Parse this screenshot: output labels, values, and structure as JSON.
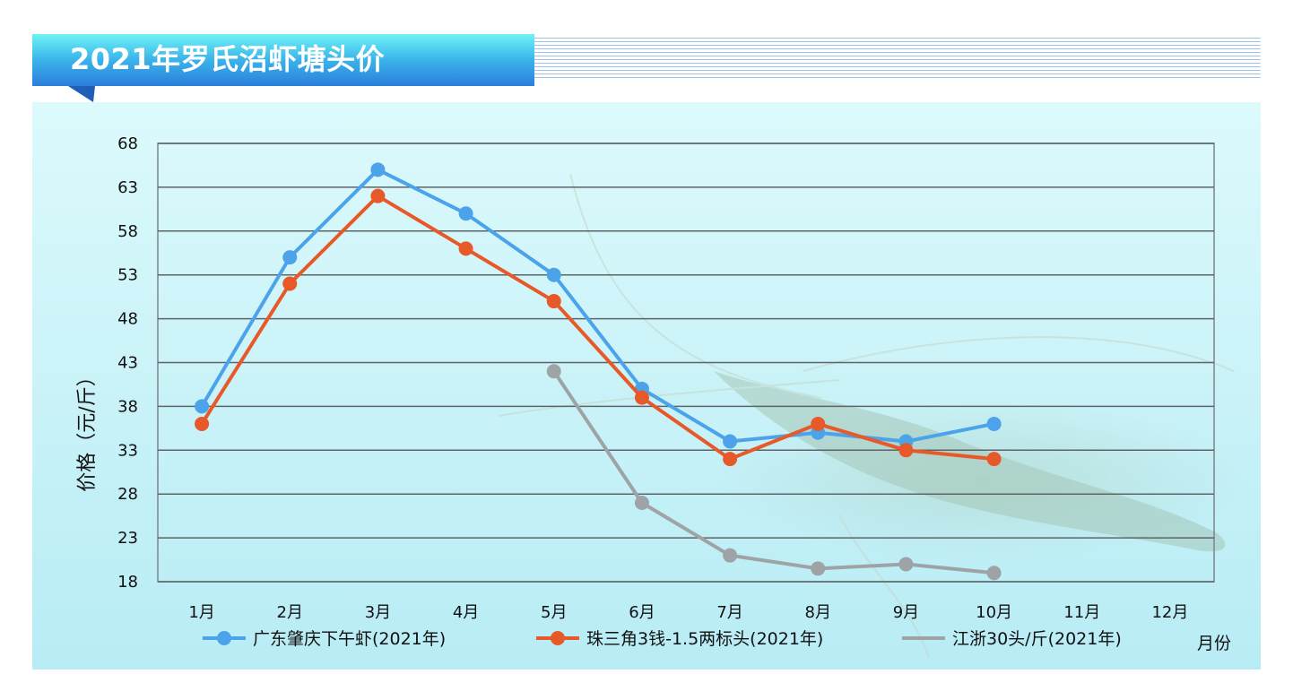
{
  "header": {
    "title": "2021年罗氏沼虾塘头价"
  },
  "chart_data": {
    "type": "line",
    "xlabel": "月份",
    "ylabel": "价格（元/斤）",
    "categories": [
      "1月",
      "2月",
      "3月",
      "4月",
      "5月",
      "6月",
      "7月",
      "8月",
      "9月",
      "10月",
      "11月",
      "12月"
    ],
    "ylim": [
      18,
      68
    ],
    "yticks": [
      18,
      23,
      28,
      33,
      38,
      43,
      48,
      53,
      58,
      63,
      68
    ],
    "grid": true,
    "legend_position": "bottom",
    "series": [
      {
        "name": "广东肇庆下午虾(2021年)",
        "color": "#4da3ea",
        "values": [
          38,
          55,
          65,
          60,
          53,
          40,
          34,
          35,
          34,
          36,
          null,
          null
        ]
      },
      {
        "name": "珠三角3钱-1.5两标头(2021年)",
        "color": "#e8592a",
        "values": [
          36,
          52,
          62,
          56,
          50,
          39,
          32,
          36,
          33,
          32,
          null,
          null
        ]
      },
      {
        "name": "江浙30头/斤(2021年)",
        "color": "#9ea3a6",
        "values": [
          null,
          null,
          null,
          null,
          42,
          27,
          21,
          19.5,
          20,
          19,
          null,
          null
        ]
      }
    ]
  }
}
